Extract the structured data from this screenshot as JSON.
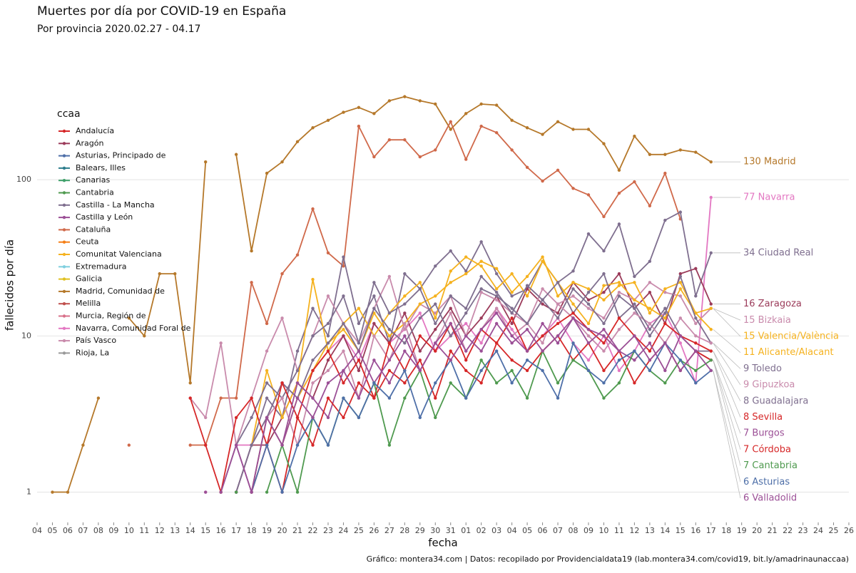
{
  "chart_data": {
    "type": "line",
    "title": "Muertes por día por COVID-19 en España",
    "subtitle": "Por provincia 2020.02.27 - 04.17",
    "x_label": "fecha",
    "y_label": "fallecidos por día",
    "caption": "Gráfico: montera34.com | Datos: recopilado por Providencialdata19 (lab.montera34.com/covid19, bit.ly/amadrinaunaccaa)",
    "log_y": true,
    "grid": true,
    "ylim": [
      0.64,
      714
    ],
    "yticks": [
      1,
      10,
      100
    ],
    "categories": [
      "04",
      "05",
      "06",
      "07",
      "08",
      "09",
      "10",
      "11",
      "12",
      "13",
      "14",
      "15",
      "16",
      "17",
      "18",
      "19",
      "20",
      "21",
      "22",
      "23",
      "24",
      "25",
      "26",
      "27",
      "28",
      "29",
      "30",
      "31",
      "01",
      "02",
      "03",
      "04",
      "05",
      "06",
      "07",
      "08",
      "09",
      "10",
      "11",
      "12",
      "13",
      "14",
      "15",
      "16",
      "17",
      "18",
      "19",
      "20",
      "21",
      "22",
      "23",
      "24",
      "25",
      "26"
    ],
    "legend_title": "ccaa",
    "legend_position": "top-left",
    "legend": [
      {
        "name": "Andalucía",
        "color": "#d62728"
      },
      {
        "name": "Aragón",
        "color": "#9b3b5a"
      },
      {
        "name": "Asturias, Principado de",
        "color": "#4e6fa8"
      },
      {
        "name": "Balears, Illes",
        "color": "#2e7d8c"
      },
      {
        "name": "Canarias",
        "color": "#3fa06a"
      },
      {
        "name": "Cantabria",
        "color": "#4f9a4f"
      },
      {
        "name": "Castilla - La Mancha",
        "color": "#7f6f8f"
      },
      {
        "name": "Castilla y León",
        "color": "#9b4f96"
      },
      {
        "name": "Cataluña",
        "color": "#d0694a"
      },
      {
        "name": "Ceuta",
        "color": "#f57f17"
      },
      {
        "name": "Comunitat Valenciana",
        "color": "#f5b21f"
      },
      {
        "name": "Extremadura",
        "color": "#7fcfdf"
      },
      {
        "name": "Galicia",
        "color": "#e0c020"
      },
      {
        "name": "Madrid, Comunidad de",
        "color": "#b5782a"
      },
      {
        "name": "Melilla",
        "color": "#c0504d"
      },
      {
        "name": "Murcia, Región de",
        "color": "#d8708a"
      },
      {
        "name": "Navarra, Comunidad Foral de",
        "color": "#e377c2"
      },
      {
        "name": "País Vasco",
        "color": "#c98bac"
      },
      {
        "name": "Rioja, La",
        "color": "#999999"
      }
    ],
    "series": [
      {
        "label": "130 Madrid",
        "color": "#b5782a",
        "values": [
          null,
          1,
          1,
          2,
          4,
          null,
          13,
          10,
          25,
          25,
          5,
          130,
          null,
          145,
          35,
          110,
          130,
          175,
          215,
          240,
          270,
          290,
          265,
          320,
          340,
          320,
          305,
          210,
          265,
          305,
          300,
          240,
          215,
          195,
          235,
          210,
          210,
          170,
          115,
          190,
          145,
          145,
          155,
          150,
          130,
          null,
          null,
          null,
          null,
          null,
          null,
          null,
          null,
          null
        ]
      },
      {
        "color": "#d0694a",
        "values": [
          null,
          null,
          null,
          null,
          null,
          null,
          2,
          null,
          null,
          null,
          2,
          2,
          4,
          4,
          22,
          12,
          25,
          33,
          65,
          34,
          28,
          220,
          140,
          180,
          180,
          140,
          155,
          235,
          135,
          220,
          200,
          155,
          120,
          98,
          115,
          88,
          80,
          58,
          82,
          97,
          68,
          110,
          56,
          null,
          null,
          null,
          null,
          null,
          null,
          null,
          null,
          null,
          null,
          null
        ]
      },
      {
        "label": "77 Navarra",
        "color": "#e377c2",
        "values": [
          null,
          null,
          null,
          null,
          null,
          null,
          null,
          null,
          null,
          null,
          null,
          1,
          null,
          2,
          2,
          3,
          5,
          4,
          6,
          8,
          10,
          7,
          12,
          9,
          11,
          14,
          8,
          10,
          12,
          9,
          15,
          11,
          8,
          10,
          13,
          9,
          7,
          10,
          6,
          8,
          12,
          14,
          9,
          5,
          77,
          null,
          null,
          null,
          null,
          null,
          null,
          null,
          null,
          null
        ]
      },
      {
        "label": "34 Ciudad Real",
        "color": "#7f6f8f",
        "values": [
          null,
          null,
          null,
          null,
          null,
          null,
          null,
          null,
          null,
          null,
          null,
          null,
          null,
          1,
          2,
          4,
          3,
          8,
          15,
          10,
          32,
          12,
          18,
          9,
          25,
          20,
          28,
          35,
          26,
          40,
          25,
          18,
          20,
          30,
          22,
          26,
          45,
          35,
          52,
          24,
          30,
          55,
          62,
          18,
          34,
          null,
          null,
          null,
          null,
          null,
          null,
          null,
          null,
          null
        ]
      },
      {
        "label": "16 Zaragoza",
        "color": "#9b3b5a",
        "values": [
          null,
          null,
          null,
          null,
          null,
          null,
          null,
          null,
          null,
          null,
          null,
          null,
          null,
          1,
          2,
          2,
          3,
          5,
          4,
          7,
          10,
          6,
          12,
          9,
          14,
          8,
          11,
          15,
          10,
          13,
          18,
          12,
          20,
          16,
          14,
          22,
          17,
          19,
          25,
          15,
          19,
          12,
          25,
          27,
          16,
          null,
          null,
          null,
          null,
          null,
          null,
          null,
          null,
          null
        ]
      },
      {
        "label": "15 Bizkaia",
        "color": "#c98bac",
        "values": [
          null,
          null,
          null,
          null,
          null,
          null,
          null,
          null,
          null,
          null,
          4,
          3,
          9,
          2,
          4,
          8,
          13,
          6,
          10,
          18,
          12,
          9,
          15,
          24,
          11,
          16,
          14,
          18,
          10,
          19,
          17,
          14,
          12,
          20,
          16,
          18,
          15,
          13,
          19,
          17,
          22,
          19,
          18,
          12,
          15,
          null,
          null,
          null,
          null,
          null,
          null,
          null,
          null,
          null
        ]
      },
      {
        "label": "15 Valencia/València",
        "color": "#f5b21f",
        "values": [
          null,
          null,
          null,
          null,
          null,
          null,
          null,
          null,
          null,
          null,
          null,
          null,
          null,
          null,
          2,
          6,
          3,
          5,
          23,
          8,
          12,
          15,
          10,
          14,
          18,
          22,
          13,
          26,
          32,
          28,
          20,
          25,
          18,
          30,
          22,
          16,
          12,
          21,
          22,
          17,
          15,
          13,
          20,
          14,
          15,
          null,
          null,
          null,
          null,
          null,
          null,
          null,
          null,
          null
        ]
      },
      {
        "label": "11 Alicante/Alacant",
        "color": "#f5b21f",
        "values": [
          null,
          null,
          null,
          null,
          null,
          null,
          null,
          null,
          null,
          null,
          null,
          null,
          null,
          null,
          1,
          3,
          2,
          4,
          6,
          9,
          11,
          8,
          14,
          10,
          12,
          16,
          18,
          22,
          25,
          30,
          27,
          19,
          24,
          32,
          18,
          22,
          20,
          17,
          21,
          22,
          14,
          20,
          22,
          14,
          11,
          null,
          null,
          null,
          null,
          null,
          null,
          null,
          null,
          null
        ]
      },
      {
        "label": "9 Toledo",
        "color": "#7f6f8f",
        "values": [
          null,
          null,
          null,
          null,
          null,
          null,
          null,
          null,
          null,
          null,
          null,
          null,
          1,
          2,
          3,
          5,
          4,
          6,
          10,
          12,
          18,
          9,
          22,
          14,
          16,
          20,
          12,
          18,
          15,
          24,
          19,
          14,
          21,
          17,
          13,
          20,
          16,
          12,
          18,
          15,
          10,
          14,
          24,
          13,
          9,
          null,
          null,
          null,
          null,
          null,
          null,
          null,
          null,
          null
        ]
      },
      {
        "label": "9 Gipuzkoa",
        "color": "#c98bac",
        "values": [
          null,
          null,
          null,
          null,
          null,
          null,
          null,
          null,
          null,
          null,
          null,
          null,
          1,
          null,
          2,
          3,
          4,
          2,
          5,
          6,
          8,
          4,
          10,
          7,
          12,
          6,
          9,
          14,
          8,
          11,
          15,
          10,
          12,
          9,
          16,
          13,
          10,
          8,
          11,
          14,
          12,
          9,
          13,
          10,
          9,
          null,
          null,
          null,
          null,
          null,
          null,
          null,
          null,
          null
        ]
      },
      {
        "label": "8 Guadalajara",
        "color": "#7f6f8f",
        "values": [
          null,
          null,
          null,
          null,
          null,
          null,
          null,
          null,
          null,
          null,
          null,
          null,
          null,
          1,
          2,
          3,
          5,
          4,
          7,
          9,
          12,
          8,
          15,
          11,
          9,
          13,
          16,
          10,
          14,
          20,
          18,
          15,
          12,
          17,
          22,
          14,
          19,
          25,
          13,
          16,
          11,
          15,
          10,
          8,
          8,
          null,
          null,
          null,
          null,
          null,
          null,
          null,
          null,
          null
        ]
      },
      {
        "label": "8 Sevilla",
        "color": "#d62728",
        "values": [
          null,
          null,
          null,
          null,
          null,
          null,
          null,
          null,
          null,
          null,
          4,
          2,
          1,
          3,
          4,
          2,
          5,
          3,
          6,
          8,
          5,
          7,
          4,
          9,
          6,
          10,
          8,
          12,
          7,
          11,
          9,
          13,
          8,
          10,
          12,
          14,
          11,
          9,
          13,
          10,
          8,
          12,
          10,
          9,
          8,
          null,
          null,
          null,
          null,
          null,
          null,
          null,
          null,
          null
        ]
      },
      {
        "label": "7 Burgos",
        "color": "#9b4f96",
        "values": [
          null,
          null,
          null,
          null,
          null,
          null,
          null,
          null,
          null,
          null,
          null,
          null,
          1,
          2,
          1,
          3,
          2,
          5,
          4,
          3,
          6,
          8,
          5,
          7,
          10,
          6,
          9,
          12,
          8,
          11,
          14,
          10,
          8,
          12,
          9,
          13,
          11,
          10,
          8,
          7,
          9,
          6,
          10,
          8,
          7,
          null,
          null,
          null,
          null,
          null,
          null,
          null,
          null,
          null
        ]
      },
      {
        "label": "7 Córdoba",
        "color": "#d62728",
        "values": [
          null,
          null,
          null,
          null,
          null,
          null,
          null,
          null,
          null,
          null,
          null,
          null,
          null,
          null,
          1,
          2,
          1,
          3,
          2,
          4,
          3,
          5,
          4,
          6,
          5,
          7,
          4,
          8,
          6,
          5,
          9,
          7,
          6,
          8,
          10,
          7,
          9,
          6,
          8,
          5,
          7,
          9,
          6,
          8,
          7,
          null,
          null,
          null,
          null,
          null,
          null,
          null,
          null,
          null
        ]
      },
      {
        "label": "7 Cantabria",
        "color": "#4f9a4f",
        "values": [
          null,
          null,
          null,
          null,
          null,
          null,
          null,
          null,
          null,
          null,
          null,
          null,
          null,
          1,
          null,
          1,
          2,
          1,
          3,
          2,
          4,
          3,
          5,
          2,
          4,
          6,
          3,
          5,
          4,
          7,
          5,
          6,
          4,
          8,
          5,
          7,
          6,
          4,
          5,
          8,
          6,
          5,
          7,
          6,
          7,
          null,
          null,
          null,
          null,
          null,
          null,
          null,
          null,
          null
        ]
      },
      {
        "label": "6 Asturias",
        "color": "#4e6fa8",
        "values": [
          null,
          null,
          null,
          null,
          null,
          null,
          null,
          null,
          null,
          null,
          null,
          null,
          null,
          null,
          1,
          2,
          1,
          2,
          3,
          2,
          4,
          3,
          5,
          4,
          6,
          3,
          5,
          7,
          4,
          6,
          8,
          5,
          7,
          6,
          4,
          9,
          6,
          5,
          7,
          8,
          6,
          9,
          7,
          5,
          6,
          null,
          null,
          null,
          null,
          null,
          null,
          null,
          null,
          null
        ]
      },
      {
        "label": "6 Valladolid",
        "color": "#9b4f96",
        "values": [
          null,
          null,
          null,
          null,
          null,
          null,
          null,
          null,
          null,
          null,
          null,
          1,
          null,
          2,
          1,
          3,
          2,
          4,
          3,
          5,
          6,
          4,
          7,
          5,
          8,
          6,
          9,
          7,
          10,
          8,
          12,
          9,
          11,
          8,
          10,
          13,
          9,
          11,
          8,
          10,
          7,
          9,
          6,
          8,
          6,
          null,
          null,
          null,
          null,
          null,
          null,
          null,
          null,
          null
        ]
      }
    ]
  }
}
